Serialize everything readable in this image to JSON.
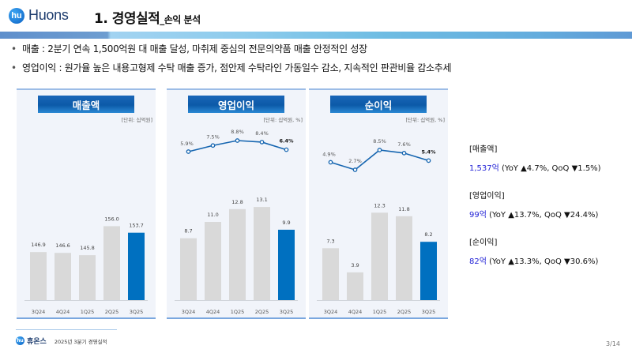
{
  "header": {
    "logo_mark": "hu",
    "logo_text": "Huons",
    "title": "1. 경영실적",
    "subtitle": "_손익 분석"
  },
  "bullets": [
    "매출 : 2분기 연속 1,500억원 대 매출 달성, 마취제 중심의 전문의약품 매출 안정적인 성장",
    "영업이익 : 원가율 높은 내용고형제 수탁 매출 증가, 점안제 수탁라인 가동일수 감소, 지속적인 판관비율 감소추세"
  ],
  "bullet_symbol": "•",
  "colors": {
    "bar_past": "#d9d9d9",
    "bar_current": "#0070c0",
    "line": "#1565b0",
    "value_highlight": "#2323d6"
  },
  "chart_data": [
    {
      "type": "bar",
      "title": "매출액",
      "unit": "[단위: 십억원]",
      "categories": [
        "3Q24",
        "4Q24",
        "1Q25",
        "2Q25",
        "3Q25"
      ],
      "values": [
        146.9,
        146.6,
        145.8,
        156.0,
        153.7
      ],
      "value_labels": [
        "146.9",
        "146.6",
        "145.8",
        "156.0",
        "153.7"
      ],
      "highlight_index": 4
    },
    {
      "type": "bar+line",
      "title": "영업이익",
      "unit": "[단위: 십억원, %]",
      "categories": [
        "3Q24",
        "4Q24",
        "1Q25",
        "2Q25",
        "3Q25"
      ],
      "values": [
        8.7,
        11.0,
        12.8,
        13.1,
        9.9
      ],
      "value_labels": [
        "8.7",
        "11.0",
        "12.8",
        "13.1",
        "9.9"
      ],
      "margin_pct": [
        5.9,
        7.5,
        8.8,
        8.4,
        6.4
      ],
      "margin_labels": [
        "5.9%",
        "7.5%",
        "8.8%",
        "8.4%",
        "6.4%"
      ],
      "highlight_index": 4
    },
    {
      "type": "bar+line",
      "title": "순이익",
      "unit": "[단위: 십억원, %]",
      "categories": [
        "3Q24",
        "4Q24",
        "1Q25",
        "2Q25",
        "3Q25"
      ],
      "values": [
        7.3,
        3.9,
        12.3,
        11.8,
        8.2
      ],
      "value_labels": [
        "7.3",
        "3.9",
        "12.3",
        "11.8",
        "8.2"
      ],
      "margin_pct": [
        4.9,
        2.7,
        8.5,
        7.6,
        5.4
      ],
      "margin_labels": [
        "4.9%",
        "2.7%",
        "8.5%",
        "7.6%",
        "5.4%"
      ],
      "highlight_index": 4
    }
  ],
  "summary": [
    {
      "label": "[매출액]",
      "value": "1,537억",
      "detail": " (YoY ▲4.7%, QoQ ▼1.5%)"
    },
    {
      "label": "[영업이익]",
      "value": "99억",
      "detail": " (YoY ▲13.7%, QoQ ▼24.4%)"
    },
    {
      "label": "[순이익]",
      "value": "82억",
      "detail": " (YoY ▲13.3%,  QoQ ▼30.6%)"
    }
  ],
  "footer": {
    "brand": "휴온스",
    "text": "2025년 3분기 경영실적",
    "page": "3/14"
  }
}
